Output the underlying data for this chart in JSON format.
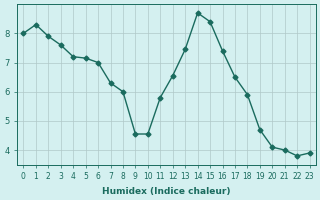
{
  "x": [
    0,
    1,
    2,
    3,
    4,
    5,
    6,
    7,
    8,
    9,
    10,
    11,
    12,
    13,
    14,
    15,
    16,
    17,
    18,
    19,
    20,
    21,
    22,
    23
  ],
  "y": [
    8.0,
    8.3,
    7.9,
    7.6,
    7.2,
    7.15,
    7.0,
    6.3,
    6.0,
    4.55,
    4.55,
    5.8,
    6.55,
    7.45,
    8.7,
    8.4,
    7.4,
    6.5,
    5.9,
    4.7,
    4.1,
    4.0,
    3.8,
    3.9
  ],
  "xlim": [
    -0.5,
    23.5
  ],
  "ylim": [
    3.5,
    9.0
  ],
  "yticks": [
    4,
    5,
    6,
    7,
    8
  ],
  "xticks": [
    0,
    1,
    2,
    3,
    4,
    5,
    6,
    7,
    8,
    9,
    10,
    11,
    12,
    13,
    14,
    15,
    16,
    17,
    18,
    19,
    20,
    21,
    22,
    23
  ],
  "xlabel": "Humidex (Indice chaleur)",
  "line_color": "#1a6b5e",
  "marker": "D",
  "marker_size": 2.5,
  "bg_color": "#d4f0f0",
  "grid_color": "#b0c8c8"
}
